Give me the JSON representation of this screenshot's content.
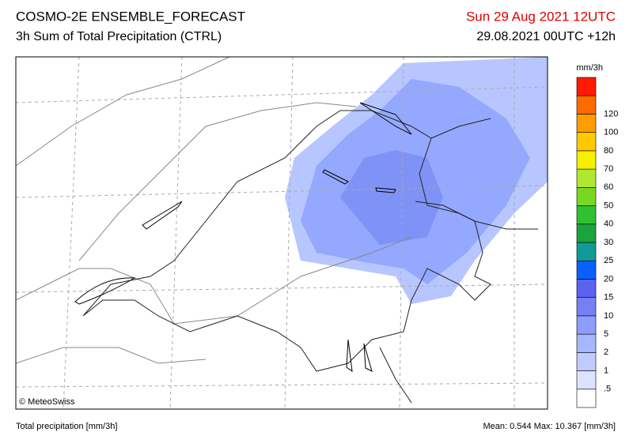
{
  "header": {
    "title": "COSMO-2E ENSEMBLE_FORECAST",
    "subtitle": "3h Sum of Total Precipitation (CTRL)",
    "valid": "Sun 29 Aug 2021 12UTC",
    "run": "29.08.2021 00UTC +12h"
  },
  "legend": {
    "unit": "mm/3h",
    "labels": [
      ".5",
      "1",
      "2",
      "5",
      "10",
      "15",
      "20",
      "25",
      "30",
      "40",
      "50",
      "60",
      "70",
      "80",
      "100",
      "120"
    ],
    "colors": [
      "#ffffff",
      "#dce3ff",
      "#c0ccff",
      "#a6b6ff",
      "#8c9dff",
      "#7580f2",
      "#5a63f0",
      "#0a60ff",
      "#129a9a",
      "#1aa43c",
      "#30c030",
      "#78d820",
      "#b0e830",
      "#f4f000",
      "#ffc800",
      "#ff9c00",
      "#ff6a00",
      "#ff1a00"
    ]
  },
  "credit": "© MeteoSwiss",
  "footer": {
    "left": "Total precipitation [mm/3h]",
    "stats": "Mean:  0.544 Max: 10.367 [mm/3h]"
  }
}
